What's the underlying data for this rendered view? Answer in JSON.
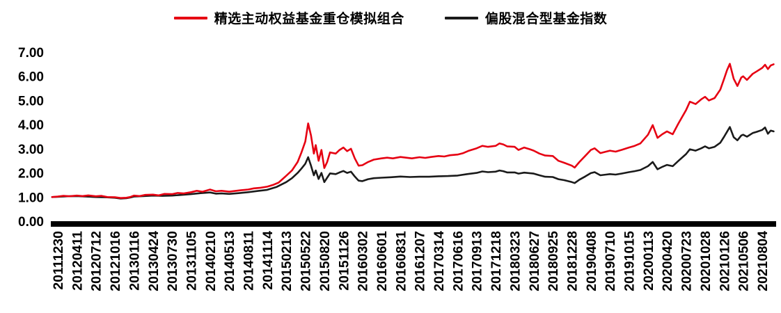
{
  "chart_data": {
    "type": "line",
    "title": "",
    "xlabel": "",
    "ylabel": "",
    "ylim": [
      0,
      7
    ],
    "grid": false,
    "legend_position": "top-center",
    "y_ticks": [
      "0.00",
      "1.00",
      "2.00",
      "3.00",
      "4.00",
      "5.00",
      "6.00",
      "7.00"
    ],
    "x_tick_labels": [
      "20111230",
      "20120411",
      "20120712",
      "20121016",
      "20130116",
      "20130424",
      "20130730",
      "20131105",
      "20140210",
      "20140513",
      "20140811",
      "20141114",
      "20150213",
      "20150522",
      "20150820",
      "20151126",
      "20160302",
      "20160601",
      "20160831",
      "20161207",
      "20170314",
      "20170616",
      "20170913",
      "20171218",
      "20180323",
      "20180627",
      "20180925",
      "20181228",
      "20190408",
      "20190710",
      "20191015",
      "20200113",
      "20200420",
      "20200723",
      "20201028",
      "20210126",
      "20210506",
      "20210804"
    ],
    "legend": [
      {
        "name": "精选主动权益基金重仓模拟组合",
        "color": "#e60012"
      },
      {
        "name": "偏股混合型基金指数",
        "color": "#1a1a1a"
      }
    ],
    "axis_color": "#000000",
    "series": [
      {
        "name": "精选主动权益基金重仓模拟组合",
        "color": "#e60012",
        "points": [
          [
            -0.3,
            1.0
          ],
          [
            0,
            1.02
          ],
          [
            0.3,
            1.05
          ],
          [
            0.6,
            1.03
          ],
          [
            1,
            1.06
          ],
          [
            1.3,
            1.04
          ],
          [
            1.6,
            1.07
          ],
          [
            2,
            1.03
          ],
          [
            2.3,
            1.05
          ],
          [
            2.6,
            1.0
          ],
          [
            3,
            0.99
          ],
          [
            3.3,
            0.96
          ],
          [
            3.6,
            0.97
          ],
          [
            3.8,
            1.0
          ],
          [
            4,
            1.06
          ],
          [
            4.3,
            1.04
          ],
          [
            4.6,
            1.09
          ],
          [
            5,
            1.1
          ],
          [
            5.3,
            1.07
          ],
          [
            5.6,
            1.13
          ],
          [
            6,
            1.12
          ],
          [
            6.3,
            1.17
          ],
          [
            6.6,
            1.15
          ],
          [
            7,
            1.2
          ],
          [
            7.3,
            1.26
          ],
          [
            7.6,
            1.22
          ],
          [
            8,
            1.31
          ],
          [
            8.3,
            1.24
          ],
          [
            8.6,
            1.26
          ],
          [
            9,
            1.22
          ],
          [
            9.3,
            1.25
          ],
          [
            9.6,
            1.28
          ],
          [
            10,
            1.31
          ],
          [
            10.3,
            1.36
          ],
          [
            10.6,
            1.38
          ],
          [
            11,
            1.43
          ],
          [
            11.3,
            1.5
          ],
          [
            11.6,
            1.6
          ],
          [
            12,
            1.88
          ],
          [
            12.3,
            2.1
          ],
          [
            12.6,
            2.45
          ],
          [
            12.8,
            2.85
          ],
          [
            13,
            3.3
          ],
          [
            13.15,
            4.05
          ],
          [
            13.3,
            3.55
          ],
          [
            13.45,
            2.8
          ],
          [
            13.55,
            3.15
          ],
          [
            13.7,
            2.5
          ],
          [
            13.85,
            2.95
          ],
          [
            14,
            2.2
          ],
          [
            14.15,
            2.45
          ],
          [
            14.3,
            2.85
          ],
          [
            14.6,
            2.8
          ],
          [
            14.8,
            2.95
          ],
          [
            15,
            3.05
          ],
          [
            15.2,
            2.9
          ],
          [
            15.4,
            3.0
          ],
          [
            15.6,
            2.6
          ],
          [
            15.8,
            2.3
          ],
          [
            16,
            2.32
          ],
          [
            16.3,
            2.45
          ],
          [
            16.6,
            2.55
          ],
          [
            17,
            2.6
          ],
          [
            17.3,
            2.63
          ],
          [
            17.6,
            2.6
          ],
          [
            18,
            2.66
          ],
          [
            18.3,
            2.63
          ],
          [
            18.6,
            2.6
          ],
          [
            19,
            2.65
          ],
          [
            19.3,
            2.62
          ],
          [
            19.6,
            2.66
          ],
          [
            20,
            2.7
          ],
          [
            20.3,
            2.68
          ],
          [
            20.6,
            2.73
          ],
          [
            21,
            2.76
          ],
          [
            21.3,
            2.82
          ],
          [
            21.6,
            2.92
          ],
          [
            22,
            3.02
          ],
          [
            22.3,
            3.12
          ],
          [
            22.6,
            3.08
          ],
          [
            23,
            3.12
          ],
          [
            23.2,
            3.22
          ],
          [
            23.4,
            3.18
          ],
          [
            23.6,
            3.1
          ],
          [
            24,
            3.08
          ],
          [
            24.2,
            2.95
          ],
          [
            24.5,
            3.05
          ],
          [
            24.8,
            2.98
          ],
          [
            25,
            2.92
          ],
          [
            25.3,
            2.8
          ],
          [
            25.6,
            2.72
          ],
          [
            26,
            2.7
          ],
          [
            26.3,
            2.5
          ],
          [
            26.6,
            2.42
          ],
          [
            27,
            2.3
          ],
          [
            27.15,
            2.22
          ],
          [
            27.4,
            2.45
          ],
          [
            27.7,
            2.7
          ],
          [
            28,
            2.95
          ],
          [
            28.2,
            3.02
          ],
          [
            28.5,
            2.82
          ],
          [
            28.8,
            2.88
          ],
          [
            29,
            2.92
          ],
          [
            29.3,
            2.88
          ],
          [
            29.6,
            2.95
          ],
          [
            30,
            3.05
          ],
          [
            30.3,
            3.12
          ],
          [
            30.6,
            3.22
          ],
          [
            31,
            3.58
          ],
          [
            31.25,
            3.98
          ],
          [
            31.5,
            3.45
          ],
          [
            31.75,
            3.6
          ],
          [
            32,
            3.72
          ],
          [
            32.3,
            3.6
          ],
          [
            32.6,
            4.05
          ],
          [
            33,
            4.6
          ],
          [
            33.2,
            4.95
          ],
          [
            33.5,
            4.85
          ],
          [
            33.8,
            5.05
          ],
          [
            34,
            5.15
          ],
          [
            34.2,
            5.0
          ],
          [
            34.5,
            5.1
          ],
          [
            34.8,
            5.45
          ],
          [
            35,
            5.9
          ],
          [
            35.15,
            6.25
          ],
          [
            35.3,
            6.52
          ],
          [
            35.5,
            5.9
          ],
          [
            35.7,
            5.6
          ],
          [
            35.9,
            5.95
          ],
          [
            36,
            6.0
          ],
          [
            36.2,
            5.85
          ],
          [
            36.5,
            6.1
          ],
          [
            36.7,
            6.2
          ],
          [
            37,
            6.35
          ],
          [
            37.15,
            6.48
          ],
          [
            37.3,
            6.3
          ],
          [
            37.45,
            6.45
          ],
          [
            37.6,
            6.5
          ]
        ]
      },
      {
        "name": "偏股混合型基金指数",
        "color": "#1a1a1a",
        "points": [
          [
            -0.3,
            1.0
          ],
          [
            0,
            1.01
          ],
          [
            0.5,
            1.03
          ],
          [
            1,
            1.04
          ],
          [
            1.5,
            1.02
          ],
          [
            2,
            1.0
          ],
          [
            2.5,
            0.99
          ],
          [
            3,
            0.97
          ],
          [
            3.3,
            0.94
          ],
          [
            3.6,
            0.95
          ],
          [
            3.8,
            0.98
          ],
          [
            4,
            1.02
          ],
          [
            4.5,
            1.04
          ],
          [
            5,
            1.06
          ],
          [
            5.5,
            1.05
          ],
          [
            6,
            1.06
          ],
          [
            6.5,
            1.09
          ],
          [
            7,
            1.12
          ],
          [
            7.5,
            1.16
          ],
          [
            8,
            1.19
          ],
          [
            8.3,
            1.14
          ],
          [
            8.6,
            1.15
          ],
          [
            9,
            1.13
          ],
          [
            9.5,
            1.16
          ],
          [
            10,
            1.2
          ],
          [
            10.5,
            1.25
          ],
          [
            11,
            1.3
          ],
          [
            11.5,
            1.42
          ],
          [
            12,
            1.62
          ],
          [
            12.3,
            1.78
          ],
          [
            12.6,
            2.0
          ],
          [
            12.8,
            2.18
          ],
          [
            13,
            2.38
          ],
          [
            13.15,
            2.65
          ],
          [
            13.3,
            2.3
          ],
          [
            13.45,
            1.9
          ],
          [
            13.55,
            2.1
          ],
          [
            13.7,
            1.75
          ],
          [
            13.85,
            2.0
          ],
          [
            14,
            1.62
          ],
          [
            14.15,
            1.8
          ],
          [
            14.3,
            1.98
          ],
          [
            14.6,
            1.95
          ],
          [
            14.8,
            2.02
          ],
          [
            15,
            2.08
          ],
          [
            15.2,
            2.0
          ],
          [
            15.4,
            2.05
          ],
          [
            15.6,
            1.85
          ],
          [
            15.8,
            1.68
          ],
          [
            16,
            1.66
          ],
          [
            16.3,
            1.74
          ],
          [
            16.6,
            1.78
          ],
          [
            17,
            1.8
          ],
          [
            17.5,
            1.82
          ],
          [
            18,
            1.85
          ],
          [
            18.5,
            1.83
          ],
          [
            19,
            1.84
          ],
          [
            19.5,
            1.84
          ],
          [
            20,
            1.86
          ],
          [
            20.5,
            1.87
          ],
          [
            21,
            1.89
          ],
          [
            21.5,
            1.95
          ],
          [
            22,
            2.0
          ],
          [
            22.3,
            2.06
          ],
          [
            22.6,
            2.03
          ],
          [
            23,
            2.05
          ],
          [
            23.2,
            2.1
          ],
          [
            23.4,
            2.07
          ],
          [
            23.6,
            2.02
          ],
          [
            24,
            2.02
          ],
          [
            24.2,
            1.97
          ],
          [
            24.5,
            2.01
          ],
          [
            25,
            1.97
          ],
          [
            25.3,
            1.9
          ],
          [
            25.6,
            1.84
          ],
          [
            26,
            1.83
          ],
          [
            26.3,
            1.74
          ],
          [
            26.6,
            1.7
          ],
          [
            27,
            1.62
          ],
          [
            27.15,
            1.58
          ],
          [
            27.4,
            1.72
          ],
          [
            27.7,
            1.85
          ],
          [
            28,
            1.99
          ],
          [
            28.2,
            2.03
          ],
          [
            28.5,
            1.9
          ],
          [
            28.8,
            1.93
          ],
          [
            29,
            1.95
          ],
          [
            29.3,
            1.93
          ],
          [
            29.6,
            1.97
          ],
          [
            30,
            2.03
          ],
          [
            30.3,
            2.07
          ],
          [
            30.6,
            2.12
          ],
          [
            31,
            2.28
          ],
          [
            31.25,
            2.45
          ],
          [
            31.5,
            2.15
          ],
          [
            31.75,
            2.25
          ],
          [
            32,
            2.33
          ],
          [
            32.3,
            2.28
          ],
          [
            32.6,
            2.5
          ],
          [
            33,
            2.78
          ],
          [
            33.2,
            2.98
          ],
          [
            33.5,
            2.92
          ],
          [
            33.8,
            3.02
          ],
          [
            34,
            3.1
          ],
          [
            34.2,
            3.02
          ],
          [
            34.5,
            3.08
          ],
          [
            34.8,
            3.25
          ],
          [
            35,
            3.5
          ],
          [
            35.15,
            3.7
          ],
          [
            35.3,
            3.9
          ],
          [
            35.5,
            3.48
          ],
          [
            35.7,
            3.35
          ],
          [
            35.9,
            3.55
          ],
          [
            36,
            3.58
          ],
          [
            36.2,
            3.5
          ],
          [
            36.5,
            3.65
          ],
          [
            36.7,
            3.7
          ],
          [
            37,
            3.78
          ],
          [
            37.15,
            3.88
          ],
          [
            37.3,
            3.62
          ],
          [
            37.45,
            3.75
          ],
          [
            37.6,
            3.72
          ]
        ]
      }
    ]
  }
}
